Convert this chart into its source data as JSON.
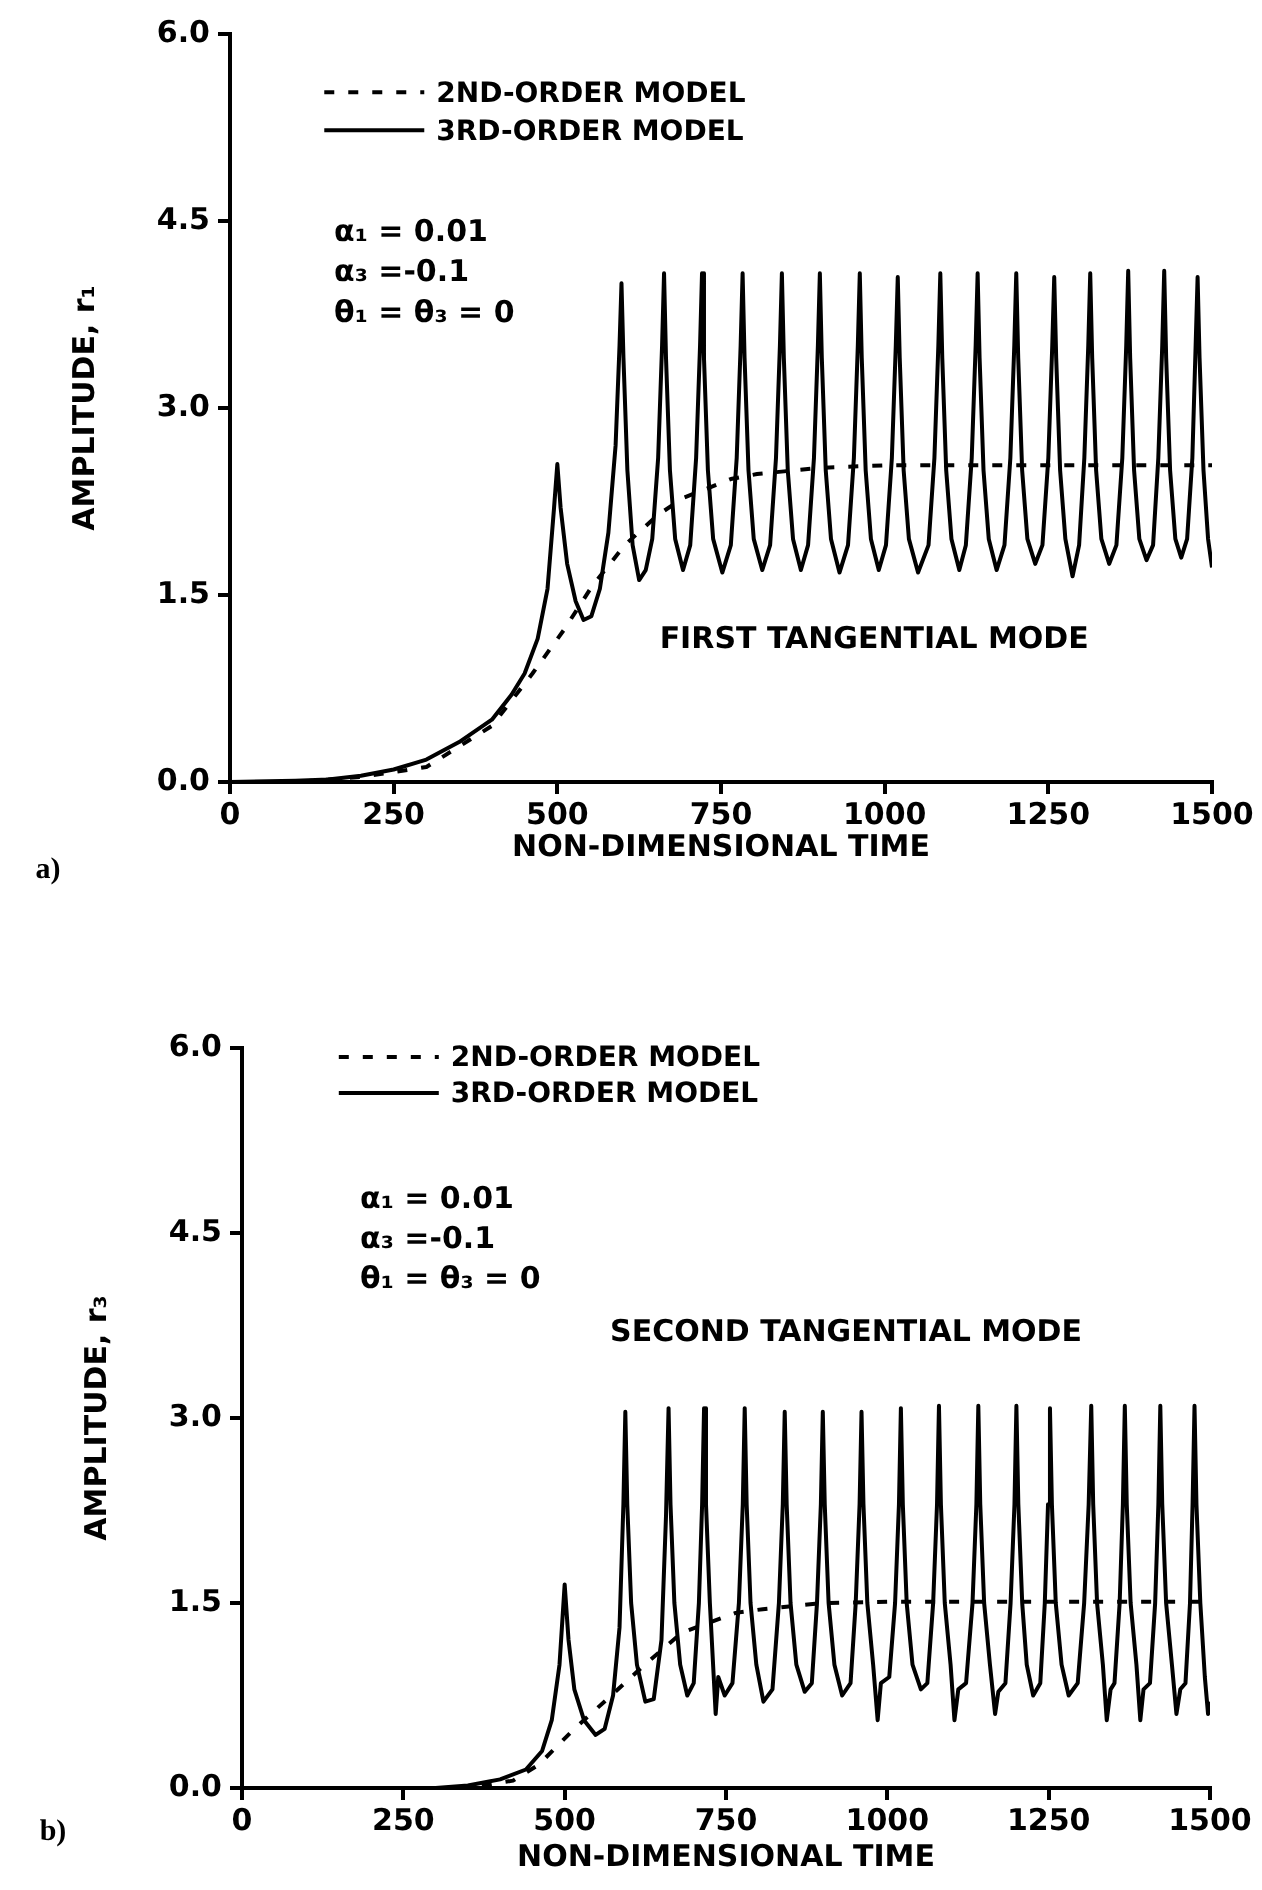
{
  "chart_data": [
    {
      "type": "line",
      "xlabel": "NON-DIMENSIONAL TIME",
      "ylabel": "AMPLITUDE, r₁",
      "xlim": [
        0,
        1500
      ],
      "xticks": [
        0,
        250,
        500,
        750,
        1000,
        1250,
        1500
      ],
      "ylim": [
        0,
        6
      ],
      "yticks": [
        {
          "value": 0,
          "label": "0.0"
        },
        {
          "value": 1.5,
          "label": "1.5"
        },
        {
          "value": 3,
          "label": "3.0"
        },
        {
          "value": 4.5,
          "label": "4.5"
        },
        {
          "value": 6,
          "label": "6.0"
        }
      ],
      "grid": false,
      "legend": "top left",
      "marker": "none",
      "annotations": [
        "a)",
        "α₁ = 0.01",
        "α₃ =-0.1",
        "θ₁ = θ₃ = 0",
        "FIRST TANGENTIAL MODE"
      ],
      "series": [
        {
          "name": "2ND-ORDER MODEL",
          "color": "#000000",
          "line_style": "dashed",
          "x": [
            0,
            100,
            200,
            300,
            400,
            462,
            510,
            553,
            603,
            653,
            693,
            765,
            805,
            900,
            1000,
            1500
          ],
          "values": [
            0,
            0,
            0.04,
            0.12,
            0.45,
            0.87,
            1.22,
            1.57,
            1.9,
            2.14,
            2.28,
            2.43,
            2.47,
            2.52,
            2.54,
            2.54
          ]
        },
        {
          "name": "3RD-ORDER MODEL",
          "color": "#000000",
          "line_style": "solid",
          "x": [
            0,
            100,
            150,
            200,
            250,
            300,
            350,
            400,
            430,
            450,
            470,
            485,
            495,
            500,
            505,
            515,
            528,
            540,
            552,
            565,
            578,
            589,
            595,
            598,
            601,
            607,
            615,
            625,
            635,
            645,
            654,
            660,
            663,
            666,
            672,
            680,
            692,
            703,
            712,
            718,
            721,
            724,
            730,
            738,
            752,
            765,
            774,
            780,
            783,
            786,
            792,
            800,
            813,
            825,
            834,
            840,
            843,
            846,
            852,
            860,
            872,
            883,
            892,
            898,
            901,
            904,
            910,
            918,
            931,
            944,
            953,
            959,
            962,
            965,
            971,
            979,
            991,
            1002,
            1011,
            1017,
            1020,
            1023,
            1029,
            1037,
            1051,
            1067,
            1076,
            1082,
            1085,
            1088,
            1094,
            1102,
            1114,
            1124,
            1133,
            1139,
            1142,
            1145,
            1151,
            1159,
            1171,
            1183,
            1192,
            1198,
            1201,
            1204,
            1210,
            1218,
            1230,
            1241,
            1250,
            1256,
            1259,
            1262,
            1268,
            1276,
            1287,
            1297,
            1305,
            1311,
            1314,
            1317,
            1323,
            1331,
            1343,
            1354,
            1363,
            1369,
            1372,
            1375,
            1381,
            1389,
            1400,
            1410,
            1418,
            1424,
            1427,
            1430,
            1436,
            1444,
            1453,
            1462,
            1470,
            1475,
            1478,
            1481,
            1487,
            1494,
            1500
          ],
          "values": [
            0,
            0.01,
            0.02,
            0.05,
            0.1,
            0.18,
            0.32,
            0.5,
            0.7,
            0.87,
            1.15,
            1.55,
            2.2,
            2.55,
            2.2,
            1.75,
            1.45,
            1.3,
            1.33,
            1.55,
            2.0,
            2.7,
            3.5,
            4.0,
            3.4,
            2.5,
            1.9,
            1.62,
            1.7,
            1.95,
            2.6,
            3.5,
            4.08,
            3.4,
            2.5,
            1.95,
            1.7,
            1.9,
            2.6,
            3.5,
            4.08,
            3.4,
            2.5,
            1.95,
            1.68,
            1.9,
            2.6,
            3.5,
            4.08,
            3.4,
            2.5,
            1.95,
            1.7,
            1.9,
            2.6,
            3.5,
            4.08,
            3.4,
            2.5,
            1.95,
            1.7,
            1.9,
            2.6,
            3.5,
            4.08,
            3.4,
            2.5,
            1.95,
            1.68,
            1.9,
            2.6,
            3.5,
            4.08,
            3.4,
            2.5,
            1.95,
            1.7,
            1.9,
            2.6,
            3.5,
            4.05,
            3.4,
            2.5,
            1.95,
            1.68,
            1.9,
            2.6,
            3.5,
            4.08,
            3.4,
            2.5,
            1.95,
            1.7,
            1.9,
            2.6,
            3.5,
            4.08,
            3.4,
            2.5,
            1.95,
            1.7,
            1.9,
            2.6,
            3.5,
            4.08,
            3.4,
            2.5,
            1.95,
            1.75,
            1.9,
            2.6,
            3.5,
            4.05,
            3.4,
            2.5,
            1.95,
            1.65,
            1.9,
            2.6,
            3.5,
            4.08,
            3.4,
            2.5,
            1.95,
            1.75,
            1.9,
            2.6,
            3.5,
            4.1,
            3.4,
            2.5,
            1.95,
            1.78,
            1.9,
            2.6,
            3.5,
            4.1,
            3.4,
            2.5,
            1.95,
            1.8,
            1.95,
            2.6,
            3.5,
            4.05,
            3.4,
            2.5,
            1.95,
            1.72
          ]
        }
      ]
    },
    {
      "type": "line",
      "xlabel": "NON-DIMENSIONAL TIME",
      "ylabel": "AMPLITUDE, r₃",
      "xlim": [
        0,
        1500
      ],
      "xticks": [
        0,
        250,
        500,
        750,
        1000,
        1250,
        1500
      ],
      "ylim": [
        0,
        6
      ],
      "yticks": [
        {
          "value": 0,
          "label": "0.0"
        },
        {
          "value": 1.5,
          "label": "1.5"
        },
        {
          "value": 3,
          "label": "3.0"
        },
        {
          "value": 4.5,
          "label": "4.5"
        },
        {
          "value": 6,
          "label": "6.0"
        }
      ],
      "grid": false,
      "legend": "top left",
      "marker": "none",
      "annotations": [
        "b)",
        "α₁ = 0.01",
        "α₃ =-0.1",
        "θ₁ = θ₃ = 0",
        "SECOND TANGENTIAL MODE"
      ],
      "series": [
        {
          "name": "2ND-ORDER MODEL",
          "color": "#000000",
          "line_style": "dashed",
          "x": [
            0,
            350,
            420,
            460,
            515,
            570,
            624,
            682,
            765,
            807,
            900,
            1000,
            1500
          ],
          "values": [
            0,
            0,
            0.06,
            0.19,
            0.48,
            0.74,
            1.0,
            1.26,
            1.42,
            1.45,
            1.5,
            1.51,
            1.51
          ]
        },
        {
          "name": "3RD-ORDER MODEL",
          "color": "#000000",
          "line_style": "solid",
          "x": [
            0,
            300,
            350,
            400,
            440,
            465,
            480,
            492,
            500,
            506,
            515,
            530,
            548,
            562,
            575,
            585,
            591,
            594,
            597,
            603,
            612,
            625,
            638,
            650,
            657,
            661,
            664,
            670,
            679,
            690,
            700,
            708,
            713,
            716,
            719,
            725,
            734,
            738,
            748,
            760,
            770,
            776,
            779,
            782,
            788,
            797,
            808,
            822,
            832,
            838,
            841,
            844,
            850,
            859,
            872,
            883,
            891,
            897,
            900,
            903,
            909,
            918,
            930,
            943,
            951,
            957,
            960,
            963,
            969,
            978,
            985,
            990,
            1003,
            1012,
            1018,
            1021,
            1024,
            1030,
            1039,
            1052,
            1062,
            1071,
            1077,
            1080,
            1083,
            1089,
            1098,
            1104,
            1110,
            1122,
            1132,
            1138,
            1141,
            1144,
            1150,
            1159,
            1167,
            1172,
            1183,
            1191,
            1197,
            1200,
            1203,
            1209,
            1216,
            1226,
            1237,
            1244,
            1249,
            1252,
            1255,
            1261,
            1270,
            1281,
            1295,
            1305,
            1312,
            1316,
            1319,
            1325,
            1334,
            1340,
            1346,
            1352,
            1360,
            1365,
            1368,
            1371,
            1377,
            1386,
            1392,
            1397,
            1407,
            1415,
            1420,
            1423,
            1426,
            1432,
            1441,
            1448,
            1454,
            1462,
            1469,
            1473,
            1476,
            1479,
            1485,
            1492,
            1497,
            1500
          ],
          "values": [
            0,
            0,
            0.02,
            0.07,
            0.15,
            0.3,
            0.55,
            1.0,
            1.65,
            1.2,
            0.8,
            0.55,
            0.43,
            0.48,
            0.75,
            1.3,
            2.3,
            3.05,
            2.3,
            1.5,
            1.0,
            0.7,
            0.72,
            1.2,
            2.2,
            3.08,
            2.3,
            1.5,
            1.0,
            0.75,
            0.85,
            1.5,
            2.3,
            3.08,
            2.3,
            1.5,
            0.6,
            0.9,
            0.75,
            0.85,
            1.5,
            2.3,
            3.08,
            2.3,
            1.5,
            1.0,
            0.7,
            0.8,
            1.5,
            2.3,
            3.05,
            2.3,
            1.5,
            1.0,
            0.78,
            0.85,
            1.5,
            2.3,
            3.05,
            2.3,
            1.5,
            1.0,
            0.75,
            0.85,
            1.5,
            2.3,
            3.05,
            2.3,
            1.5,
            1.0,
            0.55,
            0.85,
            0.9,
            1.5,
            2.3,
            3.08,
            2.3,
            1.5,
            1.0,
            0.8,
            0.85,
            1.5,
            2.3,
            3.1,
            2.3,
            1.5,
            1.0,
            0.55,
            0.8,
            0.85,
            1.5,
            2.3,
            3.1,
            2.3,
            1.5,
            1.0,
            0.6,
            0.78,
            0.85,
            1.5,
            2.3,
            3.1,
            2.3,
            1.5,
            1.0,
            0.75,
            0.85,
            1.5,
            2.3,
            3.08,
            2.3,
            1.5,
            1.0,
            0.75,
            0.85,
            1.5,
            2.3,
            3.1,
            2.3,
            1.5,
            1.0,
            0.55,
            0.8,
            0.85,
            1.5,
            2.3,
            3.1,
            2.3,
            1.5,
            1.0,
            0.55,
            0.8,
            0.85,
            1.5,
            2.3,
            3.1,
            2.3,
            1.5,
            1.0,
            0.6,
            0.8,
            0.85,
            1.5,
            2.3,
            3.1,
            2.3,
            1.5,
            0.9,
            0.6,
            0.7
          ]
        }
      ]
    }
  ]
}
